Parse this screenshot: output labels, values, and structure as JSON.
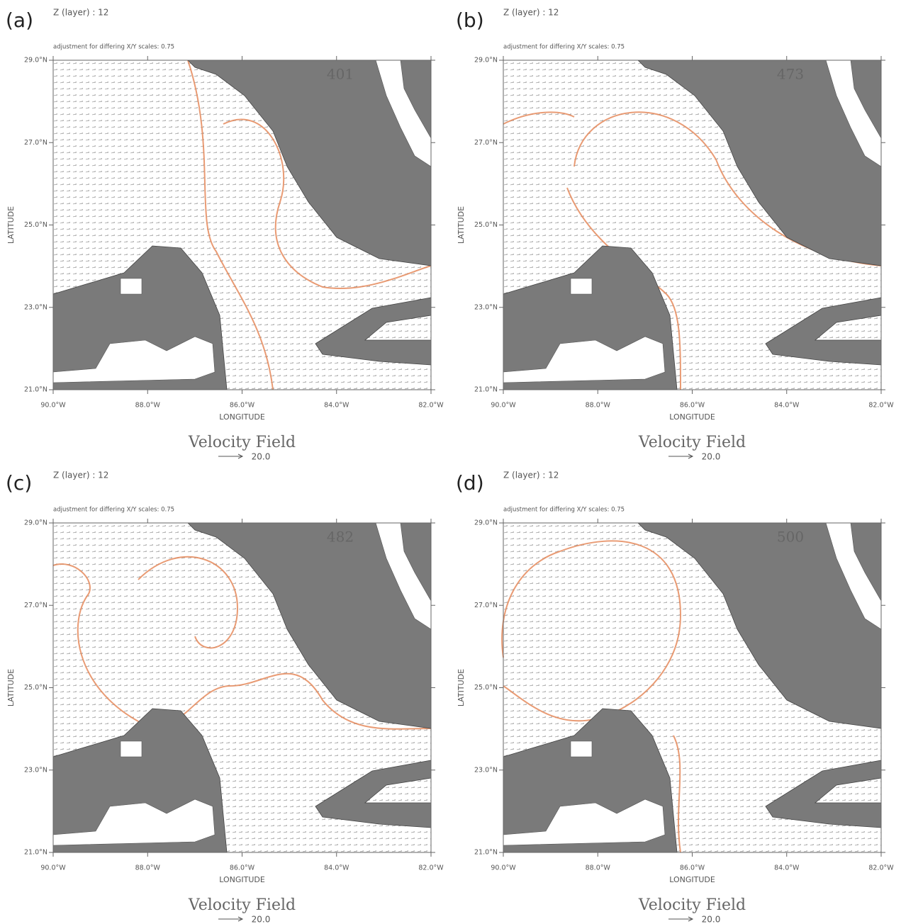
{
  "chart_data": [
    {
      "type": "vector-map",
      "panel_label": "(a)",
      "header": "Z (layer) : 12",
      "note": "adjustment for differing X/Y scales: 0.75",
      "frame": "401",
      "title": "Velocity Field",
      "xlabel": "LONGITUDE",
      "ylabel": "LATITUDE",
      "xlim": [
        -90,
        -82
      ],
      "ylim": [
        21,
        29
      ],
      "xticks": [
        {
          "value": -90,
          "label": "90.0°W"
        },
        {
          "value": -88,
          "label": "88.0°W"
        },
        {
          "value": -86,
          "label": "86.0°W"
        },
        {
          "value": -84,
          "label": "84.0°W"
        },
        {
          "value": -82,
          "label": "82.0°W"
        }
      ],
      "yticks": [
        {
          "value": 21,
          "label": "21.0°N"
        },
        {
          "value": 23,
          "label": "23.0°N"
        },
        {
          "value": 25,
          "label": "25.0°N"
        },
        {
          "value": 27,
          "label": "27.0°N"
        },
        {
          "value": 29,
          "label": "29.0°N"
        }
      ],
      "reference_vector": {
        "value": 20,
        "label": "20.0"
      },
      "land_color": "#7a7a7a",
      "contour_color": "#e58a5c"
    },
    {
      "type": "vector-map",
      "panel_label": "(b)",
      "header": "Z (layer) : 12",
      "note": "adjustment for differing X/Y scales: 0.75",
      "frame": "473",
      "title": "Velocity Field",
      "xlabel": "LONGITUDE",
      "ylabel": "LATITUDE",
      "xlim": [
        -90,
        -82
      ],
      "ylim": [
        21,
        29
      ],
      "xticks": [
        {
          "value": -90,
          "label": "90.0°W"
        },
        {
          "value": -88,
          "label": "88.0°W"
        },
        {
          "value": -86,
          "label": "86.0°W"
        },
        {
          "value": -84,
          "label": "84.0°W"
        },
        {
          "value": -82,
          "label": "82.0°W"
        }
      ],
      "yticks": [
        {
          "value": 21,
          "label": "21.0°N"
        },
        {
          "value": 23,
          "label": "23.0°N"
        },
        {
          "value": 25,
          "label": "25.0°N"
        },
        {
          "value": 27,
          "label": "27.0°N"
        },
        {
          "value": 29,
          "label": "29.0°N"
        }
      ],
      "reference_vector": {
        "value": 20,
        "label": "20.0"
      },
      "land_color": "#7a7a7a",
      "contour_color": "#e58a5c"
    },
    {
      "type": "vector-map",
      "panel_label": "(c)",
      "header": "Z (layer) : 12",
      "note": "adjustment for differing X/Y scales: 0.75",
      "frame": "482",
      "title": "Velocity Field",
      "xlabel": "LONGITUDE",
      "ylabel": "LATITUDE",
      "xlim": [
        -90,
        -82
      ],
      "ylim": [
        21,
        29
      ],
      "xticks": [
        {
          "value": -90,
          "label": "90.0°W"
        },
        {
          "value": -88,
          "label": "88.0°W"
        },
        {
          "value": -86,
          "label": "86.0°W"
        },
        {
          "value": -84,
          "label": "84.0°W"
        },
        {
          "value": -82,
          "label": "82.0°W"
        }
      ],
      "yticks": [
        {
          "value": 21,
          "label": "21.0°N"
        },
        {
          "value": 23,
          "label": "23.0°N"
        },
        {
          "value": 25,
          "label": "25.0°N"
        },
        {
          "value": 27,
          "label": "27.0°N"
        },
        {
          "value": 29,
          "label": "29.0°N"
        }
      ],
      "reference_vector": {
        "value": 20,
        "label": "20.0"
      },
      "land_color": "#7a7a7a",
      "contour_color": "#e58a5c"
    },
    {
      "type": "vector-map",
      "panel_label": "(d)",
      "header": "Z (layer) : 12",
      "note": "adjustment for differing X/Y scales: 0.75",
      "frame": "500",
      "title": "Velocity Field",
      "xlabel": "LONGITUDE",
      "ylabel": "LATITUDE",
      "xlim": [
        -90,
        -82
      ],
      "ylim": [
        21,
        29
      ],
      "xticks": [
        {
          "value": -90,
          "label": "90.0°W"
        },
        {
          "value": -88,
          "label": "88.0°W"
        },
        {
          "value": -86,
          "label": "86.0°W"
        },
        {
          "value": -84,
          "label": "84.0°W"
        },
        {
          "value": -82,
          "label": "82.0°W"
        }
      ],
      "yticks": [
        {
          "value": 21,
          "label": "21.0°N"
        },
        {
          "value": 23,
          "label": "23.0°N"
        },
        {
          "value": 25,
          "label": "25.0°N"
        },
        {
          "value": 27,
          "label": "27.0°N"
        },
        {
          "value": 29,
          "label": "29.0°N"
        }
      ],
      "reference_vector": {
        "value": 20,
        "label": "20.0"
      },
      "land_color": "#7a7a7a",
      "contour_color": "#e58a5c"
    }
  ]
}
